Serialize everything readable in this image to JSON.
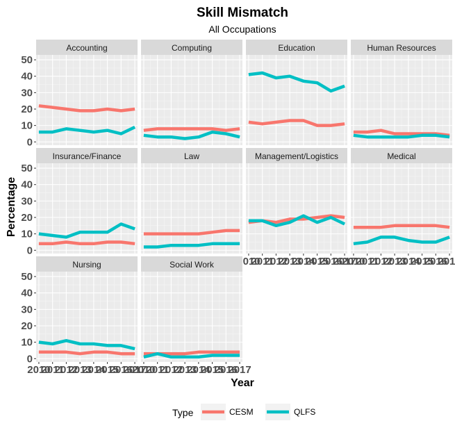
{
  "chart_data": {
    "type": "line",
    "title": "Skill Mismatch",
    "subtitle": "All Occupations",
    "xlabel": "Year",
    "ylabel": "Percentage",
    "x": [
      2010,
      2011,
      2012,
      2013,
      2014,
      2015,
      2016,
      2017
    ],
    "xlim": [
      2009.8,
      2017.2
    ],
    "ylim": [
      -2,
      53
    ],
    "yticks": [
      0,
      10,
      20,
      30,
      40,
      50
    ],
    "xtick_labels": [
      "2010",
      "2011",
      "2012",
      "2013",
      "2014",
      "2015",
      "2016",
      "2017"
    ],
    "legend": {
      "title": "Type",
      "position": "bottom"
    },
    "series_styles": [
      {
        "name": "CESM",
        "color": "#F8766D"
      },
      {
        "name": "QLFS",
        "color": "#00BFC4"
      }
    ],
    "panels": [
      {
        "name": "Accounting",
        "series": [
          {
            "name": "CESM",
            "values": [
              22,
              21,
              20,
              19,
              19,
              20,
              19,
              20
            ]
          },
          {
            "name": "QLFS",
            "values": [
              6,
              6,
              8,
              7,
              6,
              7,
              5,
              9
            ]
          }
        ]
      },
      {
        "name": "Computing",
        "series": [
          {
            "name": "CESM",
            "values": [
              7,
              8,
              8,
              8,
              8,
              8,
              7,
              8
            ]
          },
          {
            "name": "QLFS",
            "values": [
              4,
              3,
              3,
              2,
              3,
              6,
              5,
              3
            ]
          }
        ]
      },
      {
        "name": "Education",
        "series": [
          {
            "name": "CESM",
            "values": [
              12,
              11,
              12,
              13,
              13,
              10,
              10,
              11
            ]
          },
          {
            "name": "QLFS",
            "values": [
              41,
              42,
              39,
              40,
              37,
              36,
              31,
              34
            ]
          }
        ]
      },
      {
        "name": "Human Resources",
        "series": [
          {
            "name": "CESM",
            "values": [
              6,
              6,
              7,
              5,
              5,
              5,
              5,
              4
            ]
          },
          {
            "name": "QLFS",
            "values": [
              4,
              3,
              3,
              3,
              3,
              4,
              4,
              3
            ]
          }
        ]
      },
      {
        "name": "Insurance/Finance",
        "series": [
          {
            "name": "CESM",
            "values": [
              4,
              4,
              5,
              4,
              4,
              5,
              5,
              4
            ]
          },
          {
            "name": "QLFS",
            "values": [
              10,
              9,
              8,
              11,
              11,
              11,
              16,
              13
            ]
          }
        ]
      },
      {
        "name": "Law",
        "series": [
          {
            "name": "CESM",
            "values": [
              10,
              10,
              10,
              10,
              10,
              11,
              12,
              12
            ]
          },
          {
            "name": "QLFS",
            "values": [
              2,
              2,
              3,
              3,
              3,
              4,
              4,
              4
            ]
          }
        ]
      },
      {
        "name": "Management/Logistics",
        "series": [
          {
            "name": "CESM",
            "values": [
              17,
              18,
              17,
              19,
              19,
              20,
              21,
              20
            ]
          },
          {
            "name": "QLFS",
            "values": [
              18,
              18,
              15,
              17,
              21,
              17,
              20,
              16
            ]
          }
        ]
      },
      {
        "name": "Medical",
        "series": [
          {
            "name": "CESM",
            "values": [
              14,
              14,
              14,
              15,
              15,
              15,
              15,
              14
            ]
          },
          {
            "name": "QLFS",
            "values": [
              4,
              5,
              8,
              8,
              6,
              5,
              5,
              8
            ]
          }
        ]
      },
      {
        "name": "Nursing",
        "series": [
          {
            "name": "CESM",
            "values": [
              4,
              4,
              4,
              3,
              4,
              4,
              3,
              3
            ]
          },
          {
            "name": "QLFS",
            "values": [
              10,
              9,
              11,
              9,
              9,
              8,
              8,
              6
            ]
          }
        ]
      },
      {
        "name": "Social Work",
        "series": [
          {
            "name": "CESM",
            "values": [
              3,
              3,
              3,
              3,
              4,
              4,
              4,
              4
            ]
          },
          {
            "name": "QLFS",
            "values": [
              1,
              3,
              1,
              1,
              1,
              2,
              2,
              2
            ]
          }
        ]
      }
    ]
  }
}
